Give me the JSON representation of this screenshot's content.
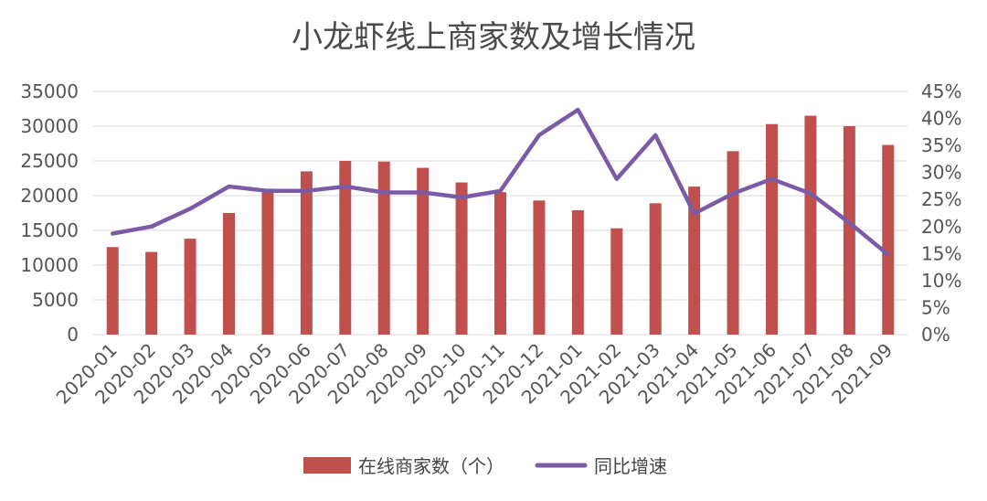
{
  "chart_data": {
    "type": "bar+line",
    "title": "小龙虾线上商家数及增长情况",
    "categories": [
      "2020-01",
      "2020-02",
      "2020-03",
      "2020-04",
      "2020-05",
      "2020-06",
      "2020-07",
      "2020-08",
      "2020-09",
      "2020-10",
      "2020-11",
      "2020-12",
      "2021-01",
      "2021-02",
      "2021-03",
      "2021-04",
      "2021-05",
      "2021-06",
      "2021-07",
      "2021-08",
      "2021-09"
    ],
    "series": [
      {
        "name": "在线商家数（个）",
        "type": "bar",
        "axis": "left",
        "color": "#c0504d",
        "values": [
          12600,
          11900,
          13800,
          17500,
          21000,
          23500,
          25000,
          24900,
          24000,
          21900,
          20500,
          19300,
          17900,
          15300,
          18900,
          21300,
          26400,
          30300,
          31500,
          30000,
          27300
        ]
      },
      {
        "name": "同比增速",
        "type": "line",
        "axis": "right",
        "color": "#7b5ba6",
        "values": [
          18.7,
          20.0,
          23.3,
          27.4,
          26.6,
          26.6,
          27.4,
          26.3,
          26.3,
          25.4,
          26.6,
          36.9,
          41.6,
          28.8,
          36.9,
          22.4,
          26.1,
          28.8,
          26.1,
          20.7,
          14.8
        ]
      }
    ],
    "y_left": {
      "min": 0,
      "max": 35000,
      "step": 5000,
      "ticks": [
        "0",
        "5000",
        "10000",
        "15000",
        "20000",
        "25000",
        "30000",
        "35000"
      ]
    },
    "y_right": {
      "min": 0,
      "max": 45,
      "step": 5,
      "ticks": [
        "0%",
        "5%",
        "10%",
        "15%",
        "20%",
        "25%",
        "30%",
        "35%",
        "40%",
        "45%"
      ]
    },
    "grid": true,
    "legend_position": "bottom"
  }
}
